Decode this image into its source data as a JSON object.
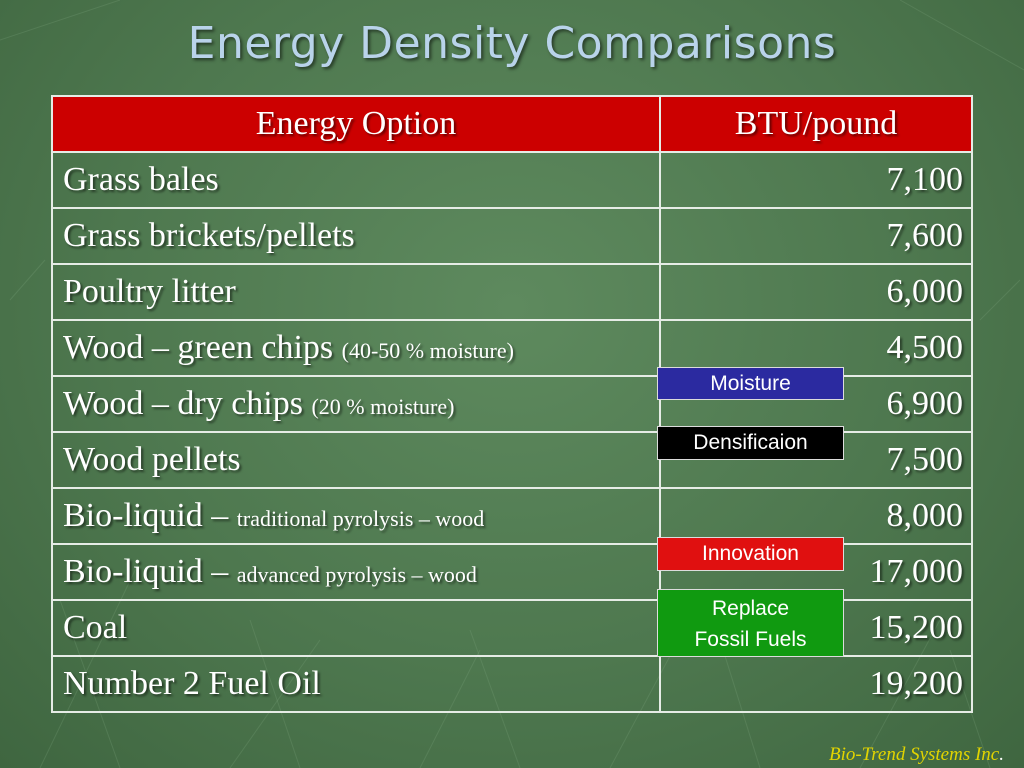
{
  "slide": {
    "title": "Energy Density Comparisons",
    "credit": "Bio-Trend Systems Inc",
    "credit_period": "."
  },
  "table": {
    "headers": [
      "Energy Option",
      "BTU/pound"
    ],
    "header_color": "#cc0000",
    "rows": [
      {
        "option": "Grass bales",
        "note": "",
        "btu": "7,100"
      },
      {
        "option": "Grass brickets/pellets",
        "note": "",
        "btu": "7,600"
      },
      {
        "option": "Poultry litter",
        "note": "",
        "btu": "6,000"
      },
      {
        "option": "Wood – green chips ",
        "note": "(40-50 % moisture)",
        "btu": "4,500"
      },
      {
        "option": "Wood – dry chips ",
        "note": "(20 % moisture)",
        "btu": "6,900"
      },
      {
        "option": "Wood pellets",
        "note": "",
        "btu": "7,500"
      },
      {
        "option": "Bio-liquid – ",
        "note": "traditional pyrolysis – wood",
        "btu": "8,000"
      },
      {
        "option": "Bio-liquid – ",
        "note": "advanced pyrolysis – wood",
        "btu": "17,000"
      },
      {
        "option": "Coal",
        "note": "",
        "btu": "15,200"
      },
      {
        "option": "Number 2 Fuel Oil",
        "note": "",
        "btu": "19,200"
      }
    ]
  },
  "callouts": {
    "moisture": {
      "label": "Moisture",
      "color": "#2b2aa0"
    },
    "densification": {
      "label": "Densificaion",
      "color": "#000000"
    },
    "innovation": {
      "label": "Innovation",
      "color": "#e01010"
    },
    "replace": {
      "line1": "Replace",
      "line2": "Fossil Fuels",
      "color": "#109a10"
    }
  }
}
